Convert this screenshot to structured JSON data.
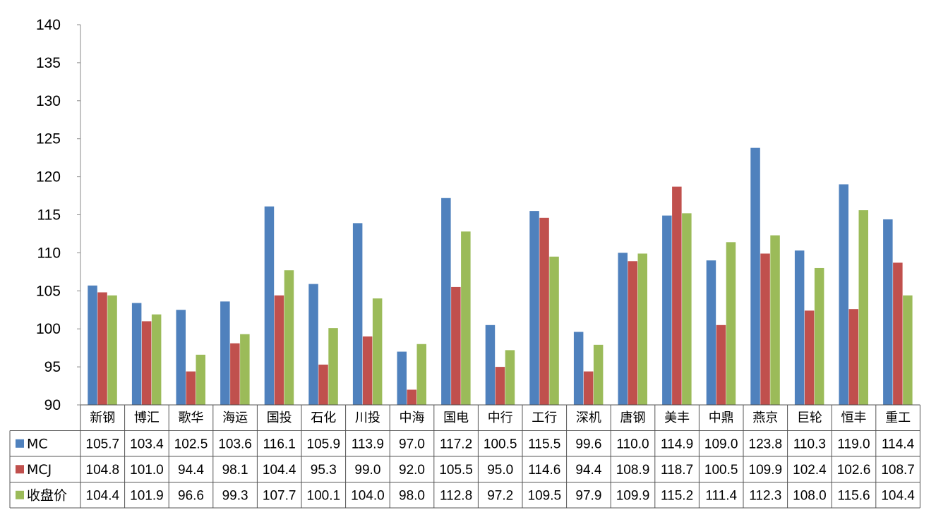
{
  "chart_data": {
    "type": "bar",
    "categories": [
      "新钢",
      "博汇",
      "歌华",
      "海运",
      "国投",
      "石化",
      "川投",
      "中海",
      "国电",
      "中行",
      "工行",
      "深机",
      "唐钢",
      "美丰",
      "中鼎",
      "燕京",
      "巨轮",
      "恒丰",
      "重工"
    ],
    "series": [
      {
        "name": "MC",
        "color": "#4F81BD",
        "values": [
          105.7,
          103.4,
          102.5,
          103.6,
          116.1,
          105.9,
          113.9,
          97.0,
          117.2,
          100.5,
          115.5,
          99.6,
          110.0,
          114.9,
          109.0,
          123.8,
          110.3,
          119.0,
          114.4
        ],
        "labels": [
          "105.7",
          "103.4",
          "102.5",
          "103.6",
          "116.1",
          "105.9",
          "113.9",
          "97.0",
          "117.2",
          "100.5",
          "115.5",
          "99.6",
          "110.0",
          "114.9",
          "109.0",
          "123.8",
          "110.3",
          "119.0",
          "114.4"
        ]
      },
      {
        "name": "MCJ",
        "color": "#C0504D",
        "values": [
          104.8,
          101.0,
          94.4,
          98.1,
          104.4,
          95.3,
          99.0,
          92.0,
          105.5,
          95.0,
          114.6,
          94.4,
          108.9,
          118.7,
          100.5,
          109.9,
          102.4,
          102.6,
          108.7
        ],
        "labels": [
          "104.8",
          "101.0",
          "94.4",
          "98.1",
          "104.4",
          "95.3",
          "99.0",
          "92.0",
          "105.5",
          "95.0",
          "114.6",
          "94.4",
          "108.9",
          "118.7",
          "100.5",
          "109.9",
          "102.4",
          "102.6",
          "108.7"
        ]
      },
      {
        "name": "收盘价",
        "color": "#9BBB59",
        "values": [
          104.4,
          101.9,
          96.6,
          99.3,
          107.7,
          100.1,
          104.0,
          98.0,
          112.8,
          97.2,
          109.5,
          97.9,
          109.9,
          115.2,
          111.4,
          112.3,
          108.0,
          115.6,
          104.4
        ],
        "labels": [
          "104.4",
          "101.9",
          "96.6",
          "99.3",
          "107.7",
          "100.1",
          "104.0",
          "98.0",
          "112.8",
          "97.2",
          "109.5",
          "97.9",
          "109.9",
          "115.2",
          "111.4",
          "112.3",
          "108.0",
          "115.6",
          "104.4"
        ]
      }
    ],
    "ylim": [
      90,
      140
    ],
    "yticks": [
      "90",
      "95",
      "100",
      "105",
      "110",
      "115",
      "120",
      "125",
      "130",
      "135",
      "140"
    ],
    "grid": false,
    "legend": "data-table",
    "title": "",
    "xlabel": "",
    "ylabel": ""
  }
}
